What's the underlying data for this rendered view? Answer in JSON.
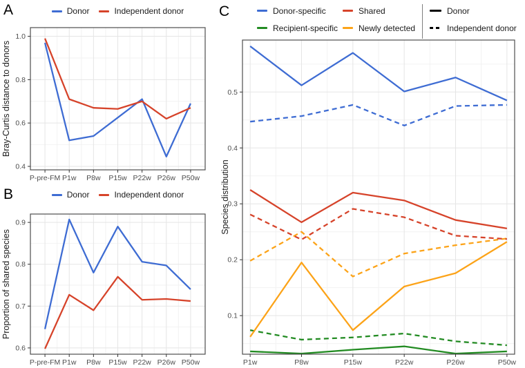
{
  "chart_data": [
    {
      "type": "line",
      "panel_label": "A",
      "ylabel": "Bray-Curtis distance to donors",
      "categories": [
        "P-pre-FM",
        "P1w",
        "P8w",
        "P15w",
        "P22w",
        "P26w",
        "P50w"
      ],
      "yticks": [
        0.4,
        0.6,
        0.8,
        1.0
      ],
      "ytick_labels": [
        "0.4",
        "0.6",
        "0.8",
        "1.0"
      ],
      "ylim": [
        0.384,
        1.04
      ],
      "grid": true,
      "legend": {
        "position": "top",
        "items": [
          {
            "label": "Donor",
            "color": "#3E6CD3",
            "dash": "solid"
          },
          {
            "label": "Independent donor",
            "color": "#D6432A",
            "dash": "solid"
          }
        ]
      },
      "series": [
        {
          "name": "Donor",
          "color": "#3E6CD3",
          "dash": "solid",
          "values": [
            0.97,
            0.52,
            0.54,
            0.625,
            0.71,
            0.445,
            0.69
          ]
        },
        {
          "name": "Independent donor",
          "color": "#D6432A",
          "dash": "solid",
          "values": [
            0.99,
            0.71,
            0.67,
            0.665,
            0.7,
            0.62,
            0.67
          ]
        }
      ]
    },
    {
      "type": "line",
      "panel_label": "B",
      "ylabel": "Proportion of shared species",
      "categories": [
        "P-pre-FM",
        "P1w",
        "P8w",
        "P15w",
        "P22w",
        "P26w",
        "P50w"
      ],
      "yticks": [
        0.6,
        0.7,
        0.8,
        0.9
      ],
      "ytick_labels": [
        "0.6",
        "0.7",
        "0.8",
        "0.9"
      ],
      "ylim": [
        0.585,
        0.92
      ],
      "grid": true,
      "legend": {
        "position": "top",
        "items": [
          {
            "label": "Donor",
            "color": "#3E6CD3",
            "dash": "solid"
          },
          {
            "label": "Independent donor",
            "color": "#D6432A",
            "dash": "solid"
          }
        ]
      },
      "series": [
        {
          "name": "Donor",
          "color": "#3E6CD3",
          "dash": "solid",
          "values": [
            0.645,
            0.907,
            0.78,
            0.89,
            0.806,
            0.797,
            0.74
          ]
        },
        {
          "name": "Independent donor",
          "color": "#D6432A",
          "dash": "solid",
          "values": [
            0.598,
            0.727,
            0.69,
            0.77,
            0.715,
            0.717,
            0.712
          ]
        }
      ]
    },
    {
      "type": "line",
      "panel_label": "C",
      "ylabel": "Species distribution",
      "categories": [
        "P1w",
        "P8w",
        "P15w",
        "P22w",
        "P26w",
        "P50w"
      ],
      "yticks": [
        0.1,
        0.2,
        0.3,
        0.4,
        0.5
      ],
      "ytick_labels": [
        "0.1",
        "0.2",
        "0.3",
        "0.4",
        "0.5"
      ],
      "ylim": [
        0.031,
        0.593
      ],
      "grid": true,
      "legend": {
        "position": "top",
        "color_items": [
          {
            "label": "Donor-specific",
            "color": "#3E6CD3",
            "dash": "solid"
          },
          {
            "label": "Recipient-specific",
            "color": "#228B22",
            "dash": "solid"
          },
          {
            "label": "Shared",
            "color": "#D6432A",
            "dash": "solid"
          },
          {
            "label": "Newly detected",
            "color": "#FCA318",
            "dash": "solid"
          }
        ],
        "linetype_items": [
          {
            "label": "Donor",
            "color": "#000000",
            "dash": "solid"
          },
          {
            "label": "Independent donor",
            "color": "#000000",
            "dash": "dashed"
          }
        ]
      },
      "series": [
        {
          "name": "Recipient-specific (Independent donor)",
          "color": "#228B22",
          "dash": "dashed",
          "values": [
            0.074,
            0.057,
            0.061,
            0.068,
            0.054,
            0.047
          ]
        },
        {
          "name": "Recipient-specific (Donor)",
          "color": "#228B22",
          "dash": "solid",
          "values": [
            0.036,
            0.032,
            0.039,
            0.045,
            0.032,
            0.036
          ]
        },
        {
          "name": "Newly detected (Independent donor)",
          "color": "#FCA318",
          "dash": "dashed",
          "values": [
            0.198,
            0.25,
            0.17,
            0.211,
            0.226,
            0.238
          ]
        },
        {
          "name": "Newly detected (Donor)",
          "color": "#FCA318",
          "dash": "solid",
          "values": [
            0.062,
            0.195,
            0.074,
            0.152,
            0.176,
            0.232
          ]
        },
        {
          "name": "Shared (Independent donor)",
          "color": "#D6432A",
          "dash": "dashed",
          "values": [
            0.281,
            0.236,
            0.291,
            0.276,
            0.243,
            0.237
          ]
        },
        {
          "name": "Shared (Donor)",
          "color": "#D6432A",
          "dash": "solid",
          "values": [
            0.325,
            0.267,
            0.32,
            0.306,
            0.271,
            0.256
          ]
        },
        {
          "name": "Donor-specific (Independent donor)",
          "color": "#3E6CD3",
          "dash": "dashed",
          "values": [
            0.447,
            0.457,
            0.477,
            0.44,
            0.475,
            0.477
          ]
        },
        {
          "name": "Donor-specific (Donor)",
          "color": "#3E6CD3",
          "dash": "solid",
          "values": [
            0.582,
            0.512,
            0.57,
            0.501,
            0.526,
            0.485
          ]
        }
      ]
    }
  ],
  "style": {
    "grid_major_color": "#E5E5E5",
    "grid_minor_color": "#F2F2F2",
    "panel_border_color": "#4D4D4D",
    "tick_color": "#333333",
    "tick_label_color": "#4D4D4D",
    "axis_title_color": "#1A1A1A"
  }
}
